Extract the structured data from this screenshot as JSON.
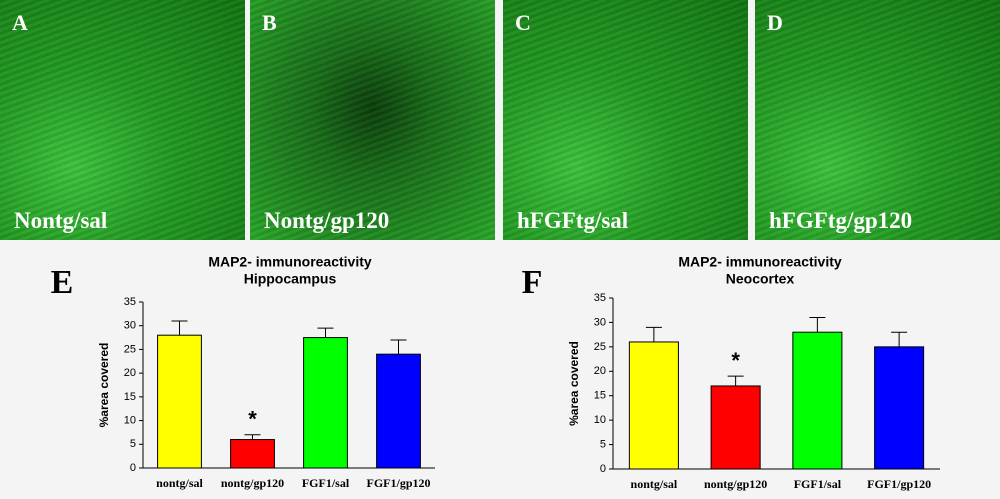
{
  "panels": [
    {
      "letter": "A",
      "label": "Nontg/sal"
    },
    {
      "letter": "B",
      "label": "Nontg/gp120"
    },
    {
      "letter": "C",
      "label": "hFGFtg/sal"
    },
    {
      "letter": "D",
      "label": "hFGFtg/gp120"
    }
  ],
  "chart_data": [
    {
      "type": "bar",
      "letter": "E",
      "title": "MAP2- immunoreactivity",
      "subtitle": "Hippocampus",
      "ylabel": "%area covered",
      "categories": [
        "nontg/sal",
        "nontg/gp120",
        "FGF1/sal",
        "FGF1/gp120"
      ],
      "values": [
        28,
        6,
        27.5,
        24
      ],
      "errors": [
        3,
        1,
        2,
        3
      ],
      "colors": [
        "#ffff00",
        "#ff0000",
        "#00ff00",
        "#0000ff"
      ],
      "significance": [
        null,
        "*",
        null,
        null
      ],
      "ylim": [
        0,
        35
      ],
      "yticks": [
        0,
        5,
        10,
        15,
        20,
        25,
        30,
        35
      ]
    },
    {
      "type": "bar",
      "letter": "F",
      "title": "MAP2- immunoreactivity",
      "subtitle": "Neocortex",
      "ylabel": "%area covered",
      "categories": [
        "nontg/sal",
        "nontg/gp120",
        "FGF1/sal",
        "FGF1/gp120"
      ],
      "values": [
        26,
        17,
        28,
        25
      ],
      "errors": [
        3,
        2,
        3,
        3
      ],
      "colors": [
        "#ffff00",
        "#ff0000",
        "#00ff00",
        "#0000ff"
      ],
      "significance": [
        null,
        "*",
        null,
        null
      ],
      "ylim": [
        0,
        35
      ],
      "yticks": [
        0,
        5,
        10,
        15,
        20,
        25,
        30,
        35
      ]
    }
  ]
}
